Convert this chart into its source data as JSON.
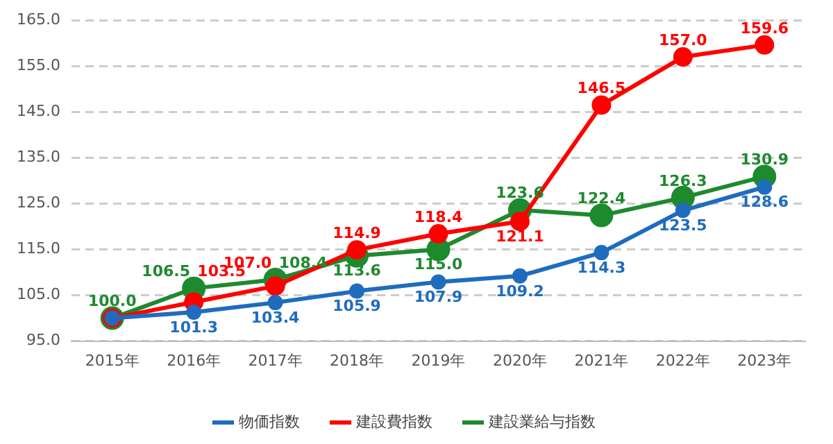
{
  "chart_data": {
    "type": "line",
    "categories": [
      "2015年",
      "2016年",
      "2017年",
      "2018年",
      "2019年",
      "2020年",
      "2021年",
      "2022年",
      "2023年"
    ],
    "series": [
      {
        "name": "物価指数",
        "color": "#1f6cbf",
        "values": [
          100.0,
          101.3,
          103.4,
          105.9,
          107.9,
          109.2,
          114.3,
          123.5,
          128.6
        ],
        "value_labels": [
          null,
          "101.3",
          "103.4",
          "105.9",
          "107.9",
          "109.2",
          "114.3",
          "123.5",
          "128.6"
        ]
      },
      {
        "name": "建設費指数",
        "color": "#ff0000",
        "values": [
          100.0,
          103.5,
          107.0,
          114.9,
          118.4,
          121.1,
          146.5,
          157.0,
          159.6
        ],
        "value_labels": [
          null,
          "103.5",
          "107.0",
          "114.9",
          "118.4",
          "121.1",
          "146.5",
          "157.0",
          "159.6"
        ]
      },
      {
        "name": "建設業給与指数",
        "color": "#1e8a2e",
        "values": [
          100.0,
          106.5,
          108.4,
          113.6,
          115.0,
          123.6,
          122.4,
          126.3,
          130.9
        ],
        "value_labels": [
          "100.0",
          "106.5",
          "108.4",
          "113.6",
          "115.0",
          "123.6",
          "122.4",
          "126.3",
          "130.9"
        ]
      }
    ],
    "ylim": [
      95,
      165
    ],
    "yticks": [
      {
        "value": 95,
        "label": "95.0"
      },
      {
        "value": 105,
        "label": "105.0"
      },
      {
        "value": 115,
        "label": "115.0"
      },
      {
        "value": 125,
        "label": "125.0"
      },
      {
        "value": 135,
        "label": "135.0"
      },
      {
        "value": 145,
        "label": "145.0"
      },
      {
        "value": 155,
        "label": "155.0"
      },
      {
        "value": 165,
        "label": "165.0"
      }
    ],
    "grid": "y",
    "legend": "bottom",
    "marker": "circle",
    "line_style": "solid"
  }
}
